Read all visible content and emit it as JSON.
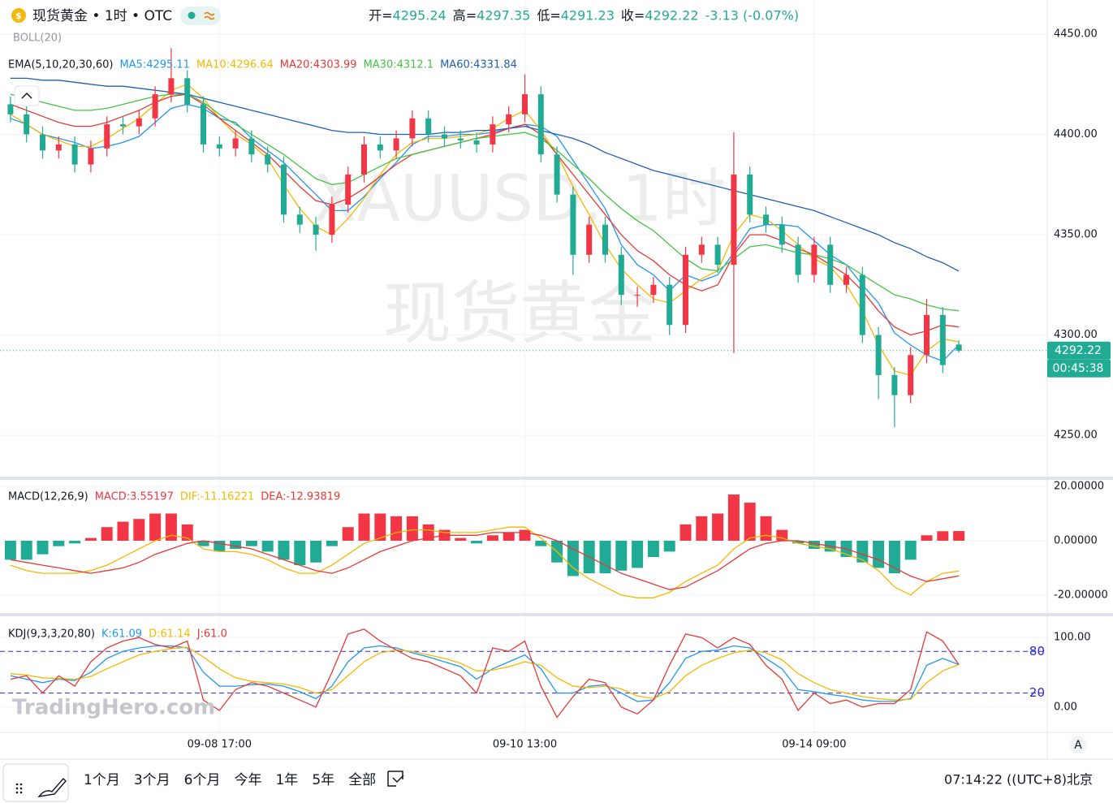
{
  "header": {
    "symbol": "现货黄金 • 1时 • OTC",
    "quote": [
      {
        "label": "开=",
        "value": "4295.24"
      },
      {
        "label": "高=",
        "value": "4297.35"
      },
      {
        "label": "低=",
        "value": "4291.23"
      },
      {
        "label": "收=",
        "value": "4292.22"
      }
    ],
    "change": "-3.13 (-0.07%)",
    "boll": "BOLL(20)"
  },
  "watermark": [
    "XAUUSD, 1时",
    "现货黄金"
  ],
  "logo": "TradingHero.com",
  "chart_data": [
    {
      "type": "candlestick",
      "title": "EMA(5,10,20,30,60)",
      "categories": [
        null,
        null,
        null,
        null,
        null,
        null,
        null,
        null,
        null,
        null,
        null,
        null,
        null,
        "09-08 17:00",
        null,
        null,
        null,
        null,
        null,
        null,
        null,
        null,
        null,
        null,
        null,
        null,
        null,
        null,
        null,
        null,
        null,
        null,
        "09-10 13:00",
        null,
        null,
        null,
        null,
        null,
        null,
        null,
        null,
        null,
        null,
        null,
        null,
        null,
        null,
        null,
        null,
        null,
        "09-14 09:00",
        null,
        null,
        null,
        null,
        null,
        null,
        null,
        null,
        null
      ],
      "open": [
        4415,
        4410,
        4400,
        4392,
        4395,
        4385,
        4393,
        4405,
        4404,
        4408,
        4420,
        4428,
        4415,
        4395,
        4393,
        4398,
        4390,
        4385,
        4360,
        4355,
        4350,
        4365,
        4380,
        4395,
        4392,
        4398,
        4408,
        4400,
        4398,
        4397,
        4395,
        4405,
        4410,
        4420,
        4390,
        4370,
        4340,
        4355,
        4340,
        4320,
        4320,
        4325,
        4305,
        4340,
        4345,
        4335,
        4380,
        4360,
        4355,
        4345,
        4330,
        4345,
        4325,
        4330,
        4300,
        4280,
        4270,
        4290,
        4310,
        4295.24
      ],
      "high": [
        4419,
        4414,
        4404,
        4399,
        4399,
        4397,
        4409,
        4409,
        4412,
        4424,
        4443,
        4432,
        4419,
        4399,
        4402,
        4402,
        4394,
        4389,
        4364,
        4359,
        4369,
        4384,
        4399,
        4399,
        4402,
        4412,
        4412,
        4404,
        4402,
        4401,
        4409,
        4414,
        4430,
        4424,
        4394,
        4374,
        4359,
        4359,
        4344,
        4324,
        4329,
        4329,
        4344,
        4349,
        4349,
        4401,
        4384,
        4364,
        4359,
        4349,
        4349,
        4349,
        4334,
        4334,
        4304,
        4284,
        4294,
        4318,
        4314,
        4297.35
      ],
      "low": [
        4406,
        4396,
        4388,
        4388,
        4381,
        4381,
        4389,
        4400,
        4400,
        4404,
        4416,
        4411,
        4391,
        4389,
        4389,
        4386,
        4381,
        4356,
        4351,
        4342,
        4346,
        4361,
        4376,
        4388,
        4388,
        4394,
        4396,
        4394,
        4393,
        4391,
        4391,
        4401,
        4406,
        4386,
        4366,
        4330,
        4336,
        4336,
        4315,
        4314,
        4316,
        4300,
        4301,
        4336,
        4331,
        4291,
        4356,
        4351,
        4341,
        4326,
        4326,
        4321,
        4321,
        4296,
        4268,
        4254,
        4266,
        4286,
        4281,
        4291.23
      ],
      "close": [
        4410,
        4400,
        4392,
        4395,
        4385,
        4393,
        4405,
        4404,
        4408,
        4420,
        4428,
        4415,
        4395,
        4393,
        4398,
        4390,
        4385,
        4360,
        4355,
        4350,
        4365,
        4380,
        4395,
        4392,
        4398,
        4408,
        4400,
        4398,
        4397,
        4395,
        4405,
        4410,
        4420,
        4390,
        4370,
        4340,
        4355,
        4340,
        4320,
        4320,
        4325,
        4305,
        4340,
        4345,
        4335,
        4380,
        4360,
        4355,
        4345,
        4330,
        4345,
        4325,
        4330,
        4300,
        4280,
        4270,
        4290,
        4310,
        4285,
        4292.22
      ],
      "up_color": "#f23645",
      "down_color": "#22ab94",
      "series": [
        {
          "name": "MA5:4295.11",
          "color": "#2196f3",
          "values": [
            4408,
            4405,
            4400,
            4398,
            4396,
            4393,
            4394,
            4396,
            4399,
            4406,
            4413,
            4415,
            4413,
            4408,
            4406,
            4398,
            4392,
            4386,
            4378,
            4370,
            4362,
            4362,
            4369,
            4378,
            4386,
            4395,
            4399,
            4399,
            4400,
            4400,
            4401,
            4403,
            4405,
            4404,
            4399,
            4387,
            4375,
            4363,
            4345,
            4335,
            4330,
            4322,
            4330,
            4327,
            4330,
            4341,
            4353,
            4355,
            4355,
            4354,
            4347,
            4340,
            4335,
            4325,
            4316,
            4301,
            4295,
            4290,
            4287,
            4295.11
          ]
        },
        {
          "name": "MA10:4296.64",
          "color": "#f5b800",
          "values": [
            4410,
            4405,
            4400,
            4397,
            4394,
            4394,
            4398,
            4403,
            4408,
            4415,
            4422,
            4425,
            4418,
            4408,
            4400,
            4395,
            4388,
            4375,
            4363,
            4354,
            4350,
            4358,
            4368,
            4380,
            4390,
            4396,
            4398,
            4398,
            4399,
            4400,
            4403,
            4408,
            4412,
            4402,
            4390,
            4374,
            4360,
            4345,
            4333,
            4325,
            4318,
            4316,
            4322,
            4328,
            4332,
            4350,
            4360,
            4358,
            4352,
            4345,
            4338,
            4334,
            4325,
            4312,
            4295,
            4282,
            4280,
            4292,
            4298,
            4296.64
          ]
        },
        {
          "name": "MA20:4303.99",
          "color": "#e53935",
          "values": [
            4415,
            4412,
            4409,
            4406,
            4404,
            4404,
            4406,
            4409,
            4412,
            4416,
            4419,
            4420,
            4415,
            4408,
            4402,
            4396,
            4390,
            4382,
            4374,
            4367,
            4365,
            4368,
            4373,
            4379,
            4385,
            4390,
            4392,
            4394,
            4396,
            4398,
            4400,
            4403,
            4405,
            4400,
            4390,
            4380,
            4370,
            4360,
            4350,
            4342,
            4337,
            4330,
            4325,
            4322,
            4325,
            4340,
            4350,
            4350,
            4347,
            4343,
            4340,
            4335,
            4330,
            4322,
            4312,
            4304,
            4300,
            4302,
            4305,
            4303.99
          ]
        },
        {
          "name": "MA30:4312.1",
          "color": "#43c443",
          "values": [
            4420,
            4418,
            4416,
            4414,
            4412,
            4412,
            4413,
            4415,
            4417,
            4419,
            4420,
            4420,
            4416,
            4410,
            4405,
            4400,
            4395,
            4390,
            4384,
            4378,
            4375,
            4376,
            4380,
            4384,
            4388,
            4390,
            4392,
            4394,
            4396,
            4398,
            4399,
            4400,
            4401,
            4398,
            4392,
            4385,
            4378,
            4370,
            4363,
            4357,
            4352,
            4345,
            4338,
            4333,
            4332,
            4338,
            4344,
            4345,
            4343,
            4341,
            4340,
            4338,
            4335,
            4330,
            4325,
            4320,
            4318,
            4315,
            4313,
            4312.1
          ]
        },
        {
          "name": "MA60:4331.84",
          "color": "#1e5fb4",
          "values": [
            4428,
            4428,
            4427,
            4427,
            4426,
            4425,
            4424,
            4424,
            4423,
            4422,
            4421,
            4420,
            4418,
            4416,
            4414,
            4412,
            4410,
            4408,
            4406,
            4404,
            4402,
            4401,
            4401,
            4400,
            4400,
            4400,
            4400,
            4401,
            4401,
            4402,
            4402,
            4403,
            4404,
            4402,
            4400,
            4398,
            4395,
            4391,
            4388,
            4385,
            4382,
            4380,
            4378,
            4376,
            4374,
            4372,
            4370,
            4368,
            4366,
            4364,
            4362,
            4359,
            4356,
            4353,
            4350,
            4346,
            4343,
            4339,
            4336,
            4331.84
          ]
        }
      ],
      "ylim": [
        4229.4,
        4467
      ],
      "yticks": [
        {
          "value": 4250,
          "label": "4250.00"
        },
        {
          "value": 4300,
          "label": "4300.00"
        },
        {
          "value": 4350,
          "label": "4350.00"
        },
        {
          "value": 4400,
          "label": "4400.00"
        },
        {
          "value": 4450,
          "label": "4450.00"
        }
      ],
      "grid": true,
      "countdown": "00:45:38"
    },
    {
      "type": "macd",
      "title": "MACD(12,26,9)",
      "histogram": {
        "name": "MACD:3.55197",
        "up_color": "#f23645",
        "down_color": "#22ab94",
        "values": [
          -7,
          -7,
          -5,
          -2,
          -1,
          1,
          5,
          7,
          8,
          10,
          10,
          6,
          -2,
          -4,
          -3,
          -2,
          -4,
          -7,
          -9,
          -8,
          -2,
          5,
          10,
          10,
          9,
          9,
          6,
          4,
          1,
          -1,
          2,
          3,
          4,
          -2,
          -8,
          -13,
          -12,
          -12,
          -11,
          -10,
          -6,
          -4,
          6,
          9,
          10,
          17,
          14,
          9,
          4,
          -1,
          -3,
          -4,
          -6,
          -8,
          -10,
          -12,
          -7,
          2,
          3.5,
          3.55197
        ]
      },
      "series": [
        {
          "name": "DIF:-11.16221",
          "color": "#f5b800",
          "values": [
            -9,
            -11,
            -12,
            -12,
            -12,
            -11,
            -9,
            -6,
            -3,
            0,
            2,
            1,
            -3,
            -4,
            -4,
            -5,
            -7,
            -10,
            -12,
            -12,
            -9,
            -5,
            -1,
            1,
            3,
            4,
            4,
            3,
            3,
            3,
            4,
            5,
            5,
            1,
            -4,
            -10,
            -14,
            -17,
            -20,
            -21,
            -21,
            -19,
            -15,
            -12,
            -9,
            -3,
            1,
            2,
            1,
            -1,
            -2,
            -3,
            -5,
            -7,
            -11,
            -17,
            -20,
            -15,
            -12,
            -11.16221
          ]
        },
        {
          "name": "DEA:-12.93819",
          "color": "#e53935",
          "values": [
            -7,
            -8,
            -9,
            -10,
            -11,
            -12,
            -11,
            -10,
            -8,
            -5,
            -3,
            -1,
            0,
            -1,
            -2,
            -3,
            -5,
            -7,
            -9,
            -11,
            -12,
            -10,
            -7,
            -4,
            -2,
            0,
            1,
            2,
            2,
            2,
            3,
            3,
            3,
            2,
            0,
            -3,
            -6,
            -9,
            -12,
            -14,
            -16,
            -18,
            -17,
            -14,
            -11,
            -7,
            -3,
            -1,
            0,
            0,
            -1,
            -2,
            -3,
            -5,
            -7,
            -10,
            -13,
            -15,
            -14,
            -12.93819
          ]
        }
      ],
      "ylim": [
        -26.6,
        22.4
      ],
      "yticks": [
        {
          "value": -20,
          "label": "-20.00000"
        },
        {
          "value": 0,
          "label": "0.00000"
        },
        {
          "value": 20,
          "label": "20.00000"
        }
      ],
      "grid": true
    },
    {
      "type": "kdj",
      "title": "KDJ(9,3,3,20,80)",
      "series": [
        {
          "name": "K:61.09",
          "color": "#2196f3",
          "values": [
            45,
            40,
            35,
            40,
            38,
            50,
            70,
            80,
            85,
            88,
            88,
            85,
            50,
            30,
            30,
            32,
            33,
            30,
            22,
            12,
            30,
            65,
            85,
            88,
            85,
            78,
            72,
            65,
            58,
            40,
            55,
            65,
            75,
            55,
            20,
            20,
            30,
            32,
            20,
            8,
            10,
            35,
            70,
            80,
            82,
            88,
            85,
            70,
            55,
            25,
            22,
            18,
            15,
            10,
            8,
            8,
            12,
            60,
            70,
            61.09
          ]
        },
        {
          "name": "D:61.14",
          "color": "#f5b800",
          "values": [
            48,
            46,
            42,
            41,
            40,
            44,
            55,
            65,
            75,
            80,
            84,
            86,
            72,
            55,
            42,
            37,
            35,
            33,
            28,
            20,
            25,
            45,
            65,
            78,
            82,
            80,
            75,
            70,
            63,
            52,
            53,
            58,
            65,
            60,
            42,
            30,
            28,
            30,
            26,
            16,
            12,
            22,
            45,
            60,
            70,
            78,
            82,
            78,
            68,
            48,
            35,
            25,
            20,
            15,
            12,
            10,
            11,
            35,
            52,
            61.14
          ]
        },
        {
          "name": "J:61.0",
          "color": "#e53935",
          "values": [
            40,
            45,
            20,
            45,
            30,
            65,
            85,
            95,
            100,
            90,
            85,
            95,
            10,
            -5,
            25,
            35,
            30,
            20,
            10,
            0,
            50,
            105,
            112,
            95,
            82,
            70,
            65,
            55,
            45,
            20,
            85,
            80,
            95,
            30,
            -15,
            15,
            40,
            35,
            0,
            -10,
            10,
            60,
            105,
            100,
            85,
            100,
            90,
            60,
            40,
            -5,
            20,
            5,
            10,
            0,
            5,
            5,
            25,
            108,
            95,
            61.0
          ]
        }
      ],
      "ref_lines": {
        "values": [
          80,
          20
        ],
        "color": "#2929d6"
      },
      "ylim": [
        -36.5,
        130.6
      ],
      "yticks": [
        {
          "value": 0,
          "label": "0.00"
        },
        {
          "value": 100,
          "label": "100.00"
        }
      ],
      "grid": true
    }
  ],
  "axis_button": "A",
  "toolbar": {
    "ranges": [
      "1个月",
      "3个月",
      "6个月",
      "今年",
      "1年",
      "5年",
      "全部"
    ],
    "clock": "07:14:22 ((UTC+8)北京"
  }
}
